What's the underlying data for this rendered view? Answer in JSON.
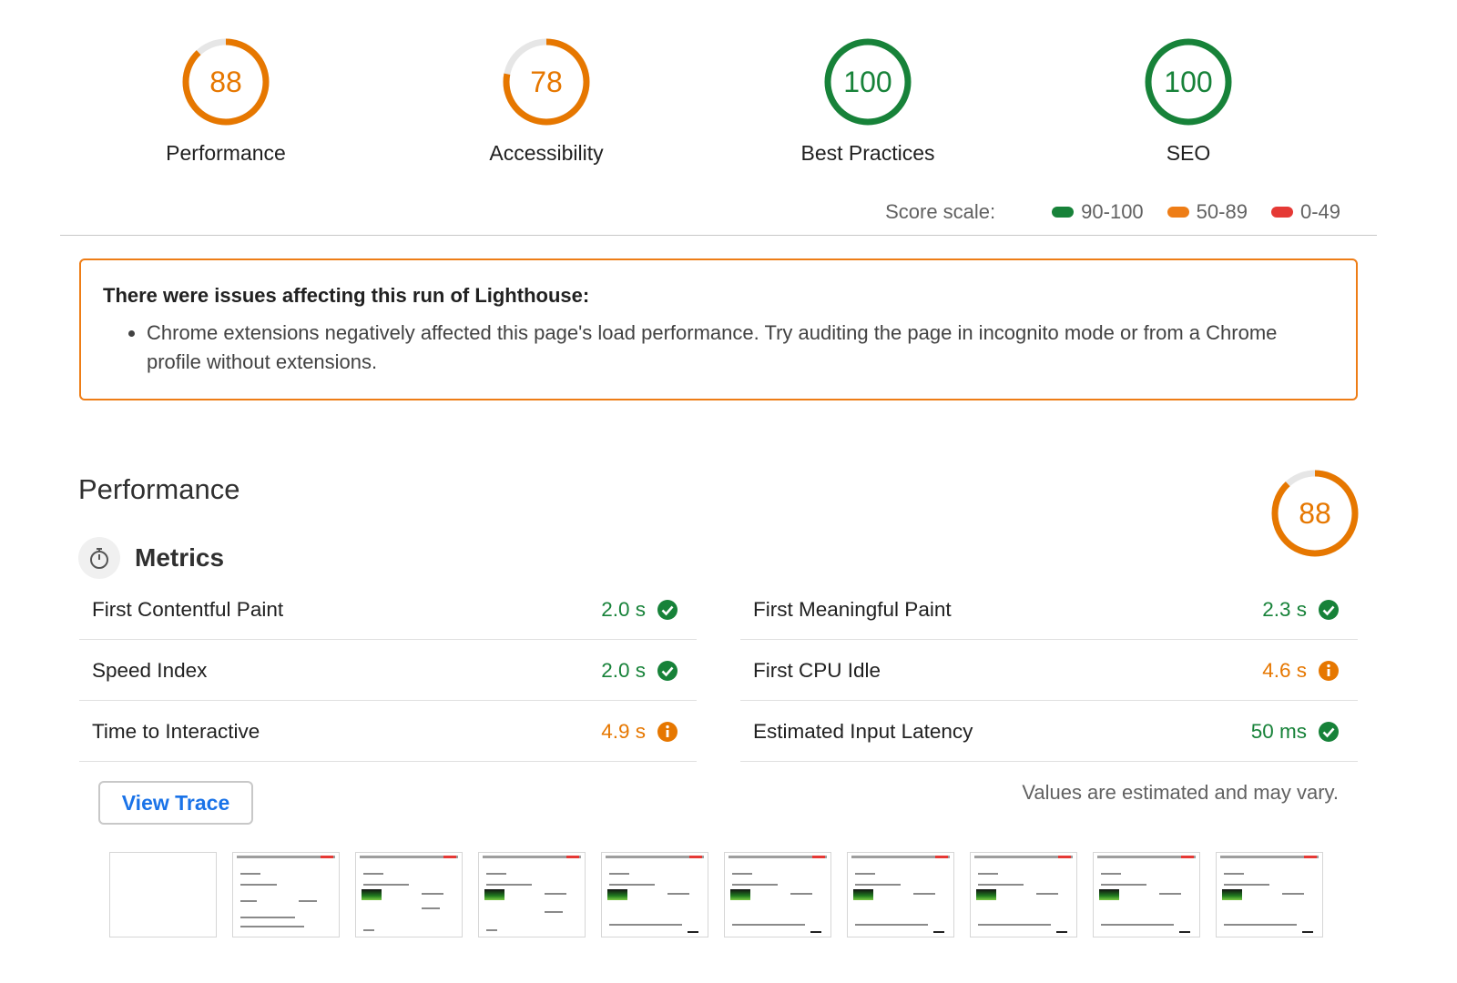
{
  "categories": [
    {
      "label": "Performance",
      "score": 88,
      "rating": "average"
    },
    {
      "label": "Accessibility",
      "score": 78,
      "rating": "average"
    },
    {
      "label": "Best Practices",
      "score": 100,
      "rating": "pass"
    },
    {
      "label": "SEO",
      "score": 100,
      "rating": "pass"
    }
  ],
  "score_scale": {
    "title": "Score scale:",
    "pass_range": "90-100",
    "average_range": "50-89",
    "fail_range": "0-49"
  },
  "warning": {
    "heading": "There were issues affecting this run of Lighthouse:",
    "items": [
      "Chrome extensions negatively affected this page's load performance. Try auditing the page in incognito mode or from a Chrome profile without extensions."
    ]
  },
  "performance": {
    "title": "Performance",
    "score": 88,
    "metrics_label": "Metrics",
    "metrics": [
      {
        "name": "First Contentful Paint",
        "value": "2.0 s",
        "status": "pass"
      },
      {
        "name": "First Meaningful Paint",
        "value": "2.3 s",
        "status": "pass"
      },
      {
        "name": "Speed Index",
        "value": "2.0 s",
        "status": "pass"
      },
      {
        "name": "First CPU Idle",
        "value": "4.6 s",
        "status": "average"
      },
      {
        "name": "Time to Interactive",
        "value": "4.9 s",
        "status": "average"
      },
      {
        "name": "Estimated Input Latency",
        "value": "50 ms",
        "status": "pass"
      }
    ],
    "view_trace_label": "View Trace",
    "estimate_note": "Values are estimated and may vary."
  },
  "colors": {
    "pass": "#178239",
    "average": "#e67700",
    "fail": "#e53935",
    "track": "#e6e6e6"
  },
  "icons": {
    "metrics": "stopwatch-icon",
    "pass": "check-circle-icon",
    "average": "info-circle-icon"
  }
}
